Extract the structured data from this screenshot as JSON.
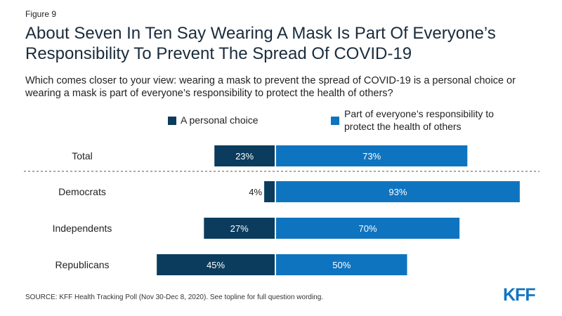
{
  "figure_label": "Figure 9",
  "title_line1": "About Seven In Ten Say Wearing A Mask Is Part Of Everyone’s",
  "title_line2": "Responsibility To Prevent The Spread Of COVID-19",
  "subtitle_line1": "Which comes closer to your view: wearing a mask to prevent the spread of COVID-19 is a personal choice or",
  "subtitle_line2": "wearing a mask is part of everyone’s responsibility to protect the health of others?",
  "source": "SOURCE: KFF Health Tracking Poll (Nov 30-Dec 8, 2020). See topline for full question wording.",
  "logo_text": "KFF",
  "colors": {
    "personal": "#0b3c5d",
    "responsibility": "#0f74c0"
  },
  "chart_data": {
    "type": "bar",
    "orientation": "horizontal-diverging",
    "title": "About Seven In Ten Say Wearing A Mask Is Part Of Everyone’s Responsibility To Prevent The Spread Of COVID-19",
    "categories": [
      "Total",
      "Democrats",
      "Independents",
      "Republicans"
    ],
    "series": [
      {
        "name": "A personal choice",
        "values": [
          23,
          4,
          27,
          45
        ],
        "labels": [
          "23%",
          "4%",
          "27%",
          "45%"
        ]
      },
      {
        "name": "Part of everyone’s responsibility to protect the health of others",
        "values": [
          73,
          93,
          70,
          50
        ],
        "labels": [
          "73%",
          "93%",
          "70%",
          "50%"
        ]
      }
    ],
    "legend": {
      "personal": "A personal choice",
      "responsibility_line1": "Part of everyone’s responsibility to",
      "responsibility_line2": "protect the health of others"
    },
    "separator_after": "Total",
    "grid": false,
    "legend_position": "top"
  }
}
